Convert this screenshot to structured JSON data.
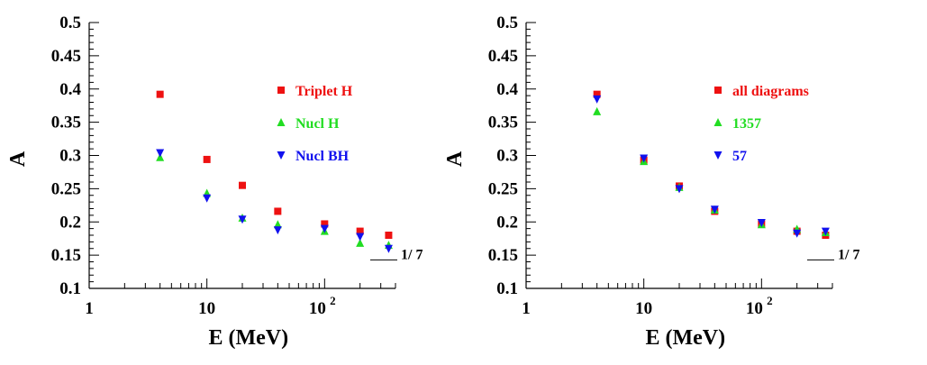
{
  "chart_data": [
    {
      "type": "scatter",
      "xlabel": "E (MeV)",
      "ylabel": "A",
      "xscale": "log",
      "xlim": [
        1,
        400
      ],
      "ylim": [
        0.1,
        0.5
      ],
      "x_ticks": [
        "1",
        "10",
        "10²"
      ],
      "y_ticks": [
        "0.1",
        "0.15",
        "0.2",
        "0.25",
        "0.3",
        "0.35",
        "0.4",
        "0.45",
        "0.5"
      ],
      "grid": false,
      "legend_position": "right",
      "reference_line": {
        "y": 0.142857,
        "label": "1/ 7"
      },
      "series": [
        {
          "name": "Triplet H",
          "marker": "square",
          "color": "#ee1111",
          "x": [
            4,
            10,
            20,
            40,
            100,
            200,
            350
          ],
          "y": [
            0.392,
            0.294,
            0.255,
            0.216,
            0.197,
            0.186,
            0.18
          ]
        },
        {
          "name": "Nucl H",
          "marker": "triangle-up",
          "color": "#22dd22",
          "x": [
            4,
            10,
            20,
            40,
            100,
            200,
            350
          ],
          "y": [
            0.297,
            0.243,
            0.206,
            0.196,
            0.186,
            0.168,
            0.165
          ]
        },
        {
          "name": "Nucl BH",
          "marker": "triangle-down",
          "color": "#1111ee",
          "x": [
            4,
            10,
            20,
            40,
            100,
            200,
            350
          ],
          "y": [
            0.304,
            0.236,
            0.204,
            0.188,
            0.19,
            0.178,
            0.16
          ]
        }
      ]
    },
    {
      "type": "scatter",
      "xlabel": "E (MeV)",
      "ylabel": "A",
      "xscale": "log",
      "xlim": [
        1,
        400
      ],
      "ylim": [
        0.1,
        0.5
      ],
      "x_ticks": [
        "1",
        "10",
        "10²"
      ],
      "y_ticks": [
        "0.1",
        "0.15",
        "0.2",
        "0.25",
        "0.3",
        "0.35",
        "0.4",
        "0.45",
        "0.5"
      ],
      "grid": false,
      "legend_position": "right",
      "reference_line": {
        "y": 0.142857,
        "label": "1/ 7"
      },
      "series": [
        {
          "name": "all diagrams",
          "marker": "square",
          "color": "#ee1111",
          "x": [
            4,
            10,
            20,
            40,
            100,
            200,
            350
          ],
          "y": [
            0.392,
            0.293,
            0.254,
            0.216,
            0.197,
            0.186,
            0.18
          ]
        },
        {
          "name": "1357",
          "marker": "triangle-up",
          "color": "#22dd22",
          "x": [
            4,
            10,
            20,
            40,
            100,
            200,
            350
          ],
          "y": [
            0.366,
            0.291,
            0.252,
            0.218,
            0.196,
            0.189,
            0.184
          ]
        },
        {
          "name": "57",
          "marker": "triangle-down",
          "color": "#1111ee",
          "x": [
            4,
            10,
            20,
            40,
            100,
            200,
            350
          ],
          "y": [
            0.385,
            0.296,
            0.25,
            0.219,
            0.199,
            0.183,
            0.186
          ]
        }
      ]
    }
  ]
}
